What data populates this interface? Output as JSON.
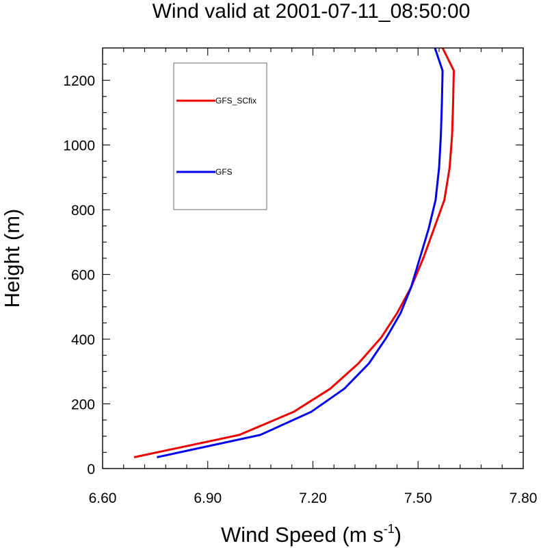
{
  "chart_data": {
    "type": "line",
    "title": "Wind valid at 2001-07-11_08:50:00",
    "xlabel": "Wind Speed (m s",
    "xlabel_superscript": "-1",
    "xlabel_suffix": ")",
    "ylabel": "Height (m)",
    "xlim": [
      6.6,
      7.8
    ],
    "ylim": [
      0,
      1300
    ],
    "xticks": [
      6.6,
      6.9,
      7.2,
      7.5,
      7.8
    ],
    "xtick_labels": [
      "6.60",
      "6.90",
      "7.20",
      "7.50",
      "7.80"
    ],
    "yticks": [
      0,
      200,
      400,
      600,
      800,
      1000,
      1200
    ],
    "ytick_labels": [
      "0",
      "200",
      "400",
      "600",
      "800",
      "1000",
      "1200"
    ],
    "legend_placement": "top-left",
    "series": [
      {
        "name": "GFS_SCfix",
        "color": "#ee0000",
        "points": [
          [
            6.69,
            35
          ],
          [
            6.99,
            104
          ],
          [
            7.145,
            175
          ],
          [
            7.25,
            247
          ],
          [
            7.33,
            325
          ],
          [
            7.395,
            405
          ],
          [
            7.44,
            480
          ],
          [
            7.48,
            560
          ],
          [
            7.515,
            650
          ],
          [
            7.545,
            740
          ],
          [
            7.575,
            830
          ],
          [
            7.59,
            930
          ],
          [
            7.597,
            1030
          ],
          [
            7.6,
            1130
          ],
          [
            7.602,
            1230
          ],
          [
            7.57,
            1300
          ]
        ]
      },
      {
        "name": "GFS",
        "color": "#0000ee",
        "points": [
          [
            6.755,
            35
          ],
          [
            7.05,
            104
          ],
          [
            7.195,
            175
          ],
          [
            7.29,
            247
          ],
          [
            7.36,
            325
          ],
          [
            7.41,
            405
          ],
          [
            7.45,
            480
          ],
          [
            7.48,
            560
          ],
          [
            7.505,
            650
          ],
          [
            7.53,
            740
          ],
          [
            7.55,
            830
          ],
          [
            7.56,
            930
          ],
          [
            7.565,
            1030
          ],
          [
            7.568,
            1130
          ],
          [
            7.57,
            1230
          ],
          [
            7.548,
            1300
          ]
        ]
      }
    ]
  }
}
